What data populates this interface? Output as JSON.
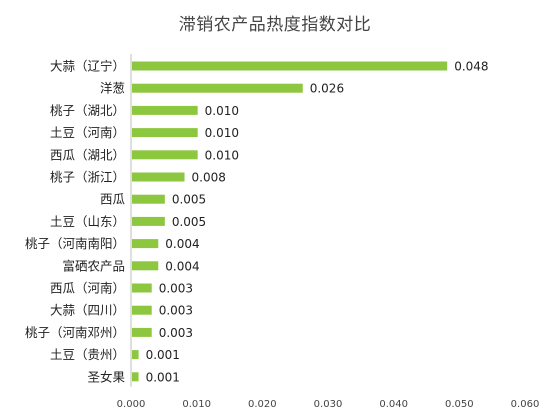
{
  "chart_data": {
    "type": "bar",
    "orientation": "horizontal",
    "title": "滞销农产品热度指数对比",
    "categories": [
      "大蒜（辽宁）",
      "洋葱",
      "桃子（湖北）",
      "土豆（河南）",
      "西瓜（湖北）",
      "桃子（浙江）",
      "西瓜",
      "土豆（山东）",
      "桃子（河南南阳）",
      "富硒农产品",
      "西瓜（河南）",
      "大蒜（四川）",
      "桃子（河南邓州）",
      "土豆（贵州）",
      "圣女果"
    ],
    "values": [
      0.048,
      0.026,
      0.01,
      0.01,
      0.01,
      0.008,
      0.005,
      0.005,
      0.004,
      0.004,
      0.003,
      0.003,
      0.003,
      0.001,
      0.001
    ],
    "value_labels": [
      "0.048",
      "0.026",
      "0.010",
      "0.010",
      "0.010",
      "0.008",
      "0.005",
      "0.005",
      "0.004",
      "0.004",
      "0.003",
      "0.003",
      "0.003",
      "0.001",
      "0.001"
    ],
    "xlim": [
      0,
      0.06
    ],
    "xticks": [
      "0.000",
      "0.010",
      "0.020",
      "0.030",
      "0.040",
      "0.050",
      "0.060"
    ],
    "bar_color": "#8DC63F",
    "grid": false,
    "legend": "none"
  }
}
